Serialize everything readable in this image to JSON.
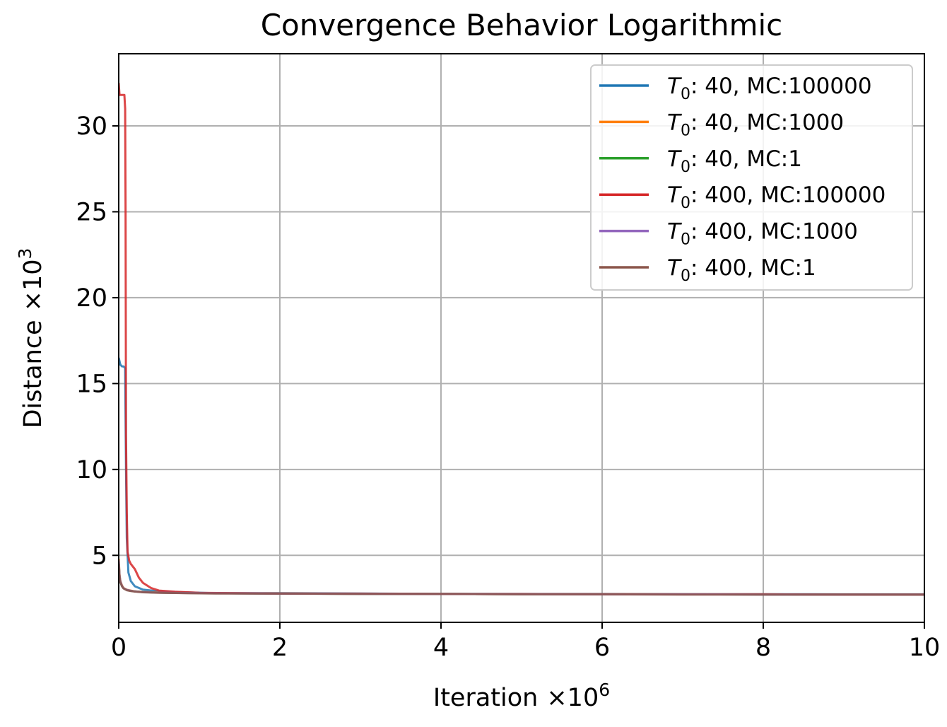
{
  "chart_data": {
    "type": "line",
    "title": "Convergence Behavior Logarithmic",
    "xlabel": "Iteration",
    "xlabel_multiplier_base": "×10",
    "xlabel_multiplier_exp": "6",
    "ylabel": "Distance",
    "ylabel_multiplier_base": "×10",
    "ylabel_multiplier_exp": "3",
    "xlim": [
      0,
      10
    ],
    "ylim": [
      1.1,
      34.2
    ],
    "xticks": [
      0,
      2,
      4,
      6,
      8,
      10
    ],
    "yticks": [
      5,
      10,
      15,
      20,
      25,
      30
    ],
    "grid": true,
    "legend_position": "top-right",
    "series": [
      {
        "name": "T0: 40, MC:100000",
        "legend_label": {
          "sym": "T",
          "sub": "0",
          "rest": ": 40, MC:100000"
        },
        "color": "#1f77b4",
        "x": [
          0,
          0.01,
          0.02,
          0.04,
          0.06,
          0.08,
          0.09,
          0.1,
          0.12,
          0.15,
          0.2,
          0.3,
          0.5,
          0.8,
          1.2,
          2,
          3,
          4,
          5,
          6,
          7,
          8,
          9,
          10
        ],
        "y": [
          16.5,
          16.3,
          16.1,
          16.0,
          16.0,
          15.9,
          10.0,
          6.0,
          4.0,
          3.5,
          3.2,
          3.0,
          2.9,
          2.85,
          2.8,
          2.8,
          2.78,
          2.76,
          2.75,
          2.75,
          2.74,
          2.74,
          2.73,
          2.73
        ]
      },
      {
        "name": "T0: 40, MC:1000",
        "legend_label": {
          "sym": "T",
          "sub": "0",
          "rest": ": 40, MC:1000"
        },
        "color": "#ff7f0e",
        "x": [
          0,
          0.01,
          0.02,
          0.04,
          0.06,
          0.1,
          0.15,
          0.2,
          0.3,
          0.5,
          0.8,
          1.2,
          2,
          3,
          4,
          5,
          6,
          7,
          8,
          9,
          10
        ],
        "y": [
          4.8,
          3.9,
          3.5,
          3.25,
          3.1,
          3.0,
          2.95,
          2.9,
          2.87,
          2.84,
          2.82,
          2.8,
          2.78,
          2.76,
          2.75,
          2.74,
          2.74,
          2.73,
          2.73,
          2.72,
          2.72
        ]
      },
      {
        "name": "T0: 40, MC:1",
        "legend_label": {
          "sym": "T",
          "sub": "0",
          "rest": ": 40, MC:1"
        },
        "color": "#2ca02c",
        "x": [
          0,
          0.01,
          0.02,
          0.04,
          0.06,
          0.1,
          0.15,
          0.2,
          0.3,
          0.5,
          0.8,
          1.2,
          2,
          3,
          4,
          5,
          6,
          7,
          8,
          9,
          10
        ],
        "y": [
          4.6,
          3.8,
          3.45,
          3.2,
          3.08,
          2.98,
          2.93,
          2.9,
          2.86,
          2.83,
          2.81,
          2.79,
          2.77,
          2.76,
          2.75,
          2.74,
          2.73,
          2.73,
          2.72,
          2.72,
          2.72
        ]
      },
      {
        "name": "T0: 400, MC:100000",
        "legend_label": {
          "sym": "T",
          "sub": "0",
          "rest": ": 400, MC:100000"
        },
        "color": "#d62728",
        "x": [
          0,
          0.01,
          0.02,
          0.04,
          0.06,
          0.07,
          0.08,
          0.085,
          0.09,
          0.1,
          0.11,
          0.13,
          0.15,
          0.2,
          0.25,
          0.3,
          0.4,
          0.5,
          0.7,
          1.0,
          1.5,
          2,
          3,
          4,
          5,
          6,
          7,
          8,
          9,
          10
        ],
        "y": [
          32.5,
          31.8,
          31.8,
          31.8,
          31.8,
          31.8,
          31.0,
          25.0,
          12.0,
          7.5,
          5.2,
          4.7,
          4.5,
          4.2,
          3.7,
          3.4,
          3.1,
          2.95,
          2.88,
          2.82,
          2.8,
          2.78,
          2.77,
          2.75,
          2.75,
          2.74,
          2.73,
          2.73,
          2.72,
          2.72
        ]
      },
      {
        "name": "T0: 400, MC:1000",
        "legend_label": {
          "sym": "T",
          "sub": "0",
          "rest": ": 400, MC:1000"
        },
        "color": "#9467bd",
        "x": [
          0,
          0.01,
          0.02,
          0.04,
          0.06,
          0.1,
          0.15,
          0.2,
          0.3,
          0.5,
          0.8,
          1.2,
          2,
          3,
          4,
          5,
          6,
          7,
          8,
          9,
          10
        ],
        "y": [
          4.7,
          3.85,
          3.5,
          3.22,
          3.09,
          2.99,
          2.94,
          2.9,
          2.86,
          2.83,
          2.81,
          2.79,
          2.77,
          2.76,
          2.75,
          2.74,
          2.73,
          2.73,
          2.72,
          2.72,
          2.72
        ]
      },
      {
        "name": "T0: 400, MC:1",
        "legend_label": {
          "sym": "T",
          "sub": "0",
          "rest": ": 400, MC:1"
        },
        "color": "#8c564b",
        "x": [
          0,
          0.01,
          0.02,
          0.04,
          0.06,
          0.1,
          0.15,
          0.2,
          0.3,
          0.5,
          0.8,
          1.2,
          2,
          3,
          4,
          5,
          6,
          7,
          8,
          9,
          10
        ],
        "y": [
          4.5,
          3.8,
          3.45,
          3.2,
          3.07,
          2.97,
          2.92,
          2.89,
          2.85,
          2.82,
          2.8,
          2.78,
          2.77,
          2.76,
          2.75,
          2.74,
          2.73,
          2.72,
          2.72,
          2.72,
          2.71
        ]
      }
    ]
  }
}
